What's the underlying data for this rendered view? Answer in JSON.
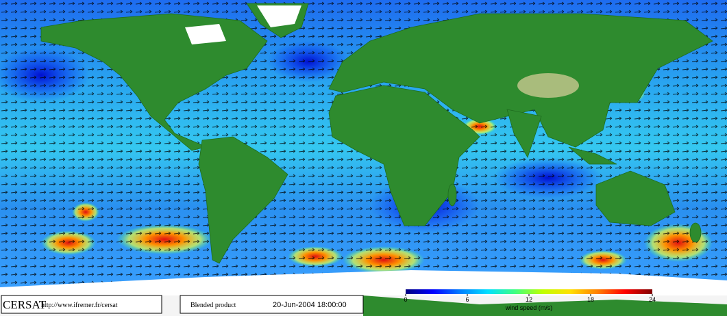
{
  "footer": {
    "logo": "CERSAT",
    "url": "http://www.ifremer.fr/cersat",
    "product": "Blended product",
    "datetime": "20-Jun-2004 18:00:00"
  },
  "colorbar": {
    "label": "wind speed (m/s)",
    "range": [
      0,
      24
    ],
    "ticks": [
      0,
      6,
      12,
      18,
      24
    ],
    "colors": [
      "#000080",
      "#0000ff",
      "#0080ff",
      "#00e0ff",
      "#40ff80",
      "#c0ff00",
      "#ffe000",
      "#ff8000",
      "#ff0000",
      "#800000"
    ]
  }
}
